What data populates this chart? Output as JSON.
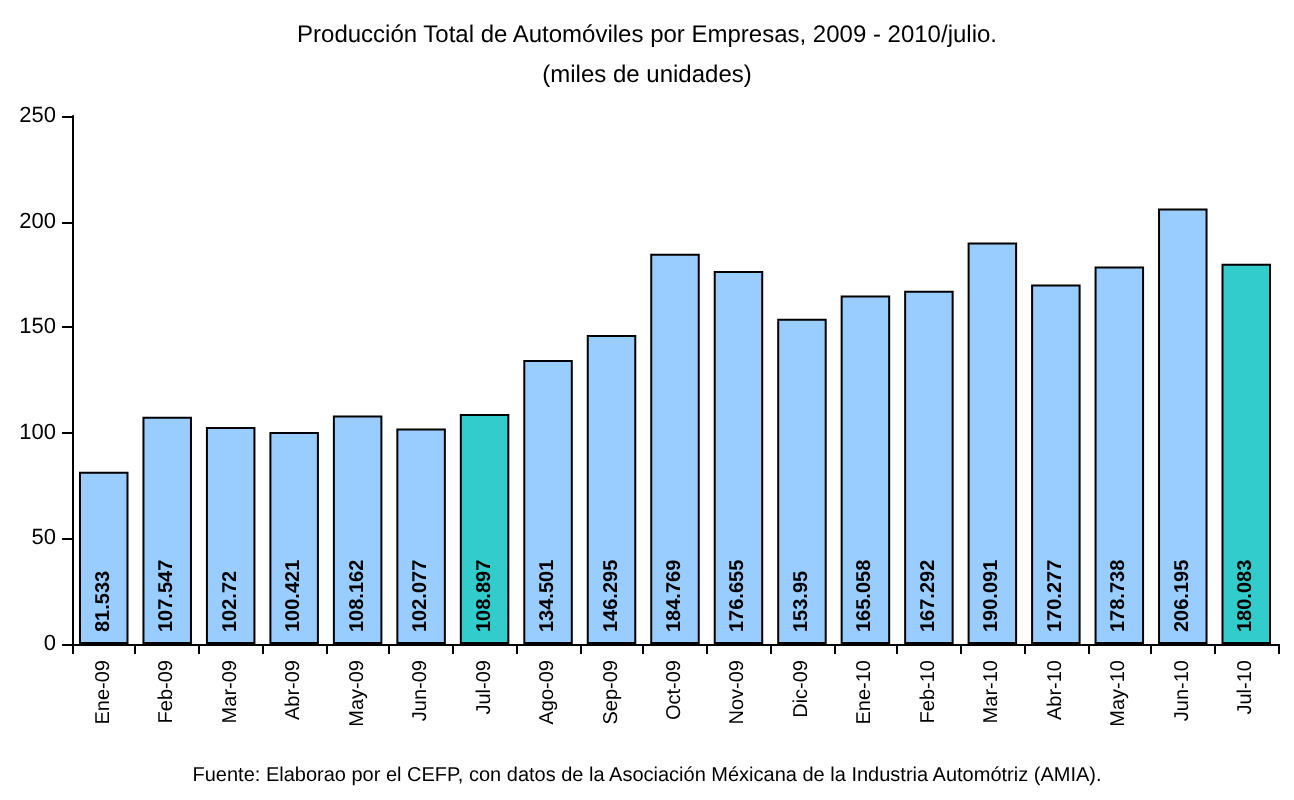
{
  "chart_data": {
    "type": "bar",
    "title": "Producción Total de Automóviles por Empresas, 2009 - 2010/julio.",
    "subtitle": "(miles de unidades)",
    "categories": [
      "Ene-09",
      "Feb-09",
      "Mar-09",
      "Abr-09",
      "May-09",
      "Jun-09",
      "Jul-09",
      "Ago-09",
      "Sep-09",
      "Oct-09",
      "Nov-09",
      "Dic-09",
      "Ene-10",
      "Feb-10",
      "Mar-10",
      "Abr-10",
      "May-10",
      "Jun-10",
      "Jul-10"
    ],
    "values": [
      81.533,
      107.547,
      102.72,
      100.421,
      108.162,
      102.077,
      108.897,
      134.501,
      146.295,
      184.769,
      176.655,
      153.95,
      165.058,
      167.292,
      190.091,
      170.277,
      178.738,
      206.195,
      180.083
    ],
    "colors": [
      "#99ccff",
      "#99ccff",
      "#99ccff",
      "#99ccff",
      "#99ccff",
      "#99ccff",
      "#33cccc",
      "#99ccff",
      "#99ccff",
      "#99ccff",
      "#99ccff",
      "#99ccff",
      "#99ccff",
      "#99ccff",
      "#99ccff",
      "#99ccff",
      "#99ccff",
      "#99ccff",
      "#33cccc"
    ],
    "ylim": [
      0,
      250
    ],
    "yticks": [
      0,
      50,
      100,
      150,
      200,
      250
    ],
    "grid": false,
    "data_labels": true,
    "annotations": [
      "Fuente: Elaborao por el CEFP, con datos de la Asociación Méxicana de la Industria Automótriz (AMIA)."
    ]
  }
}
